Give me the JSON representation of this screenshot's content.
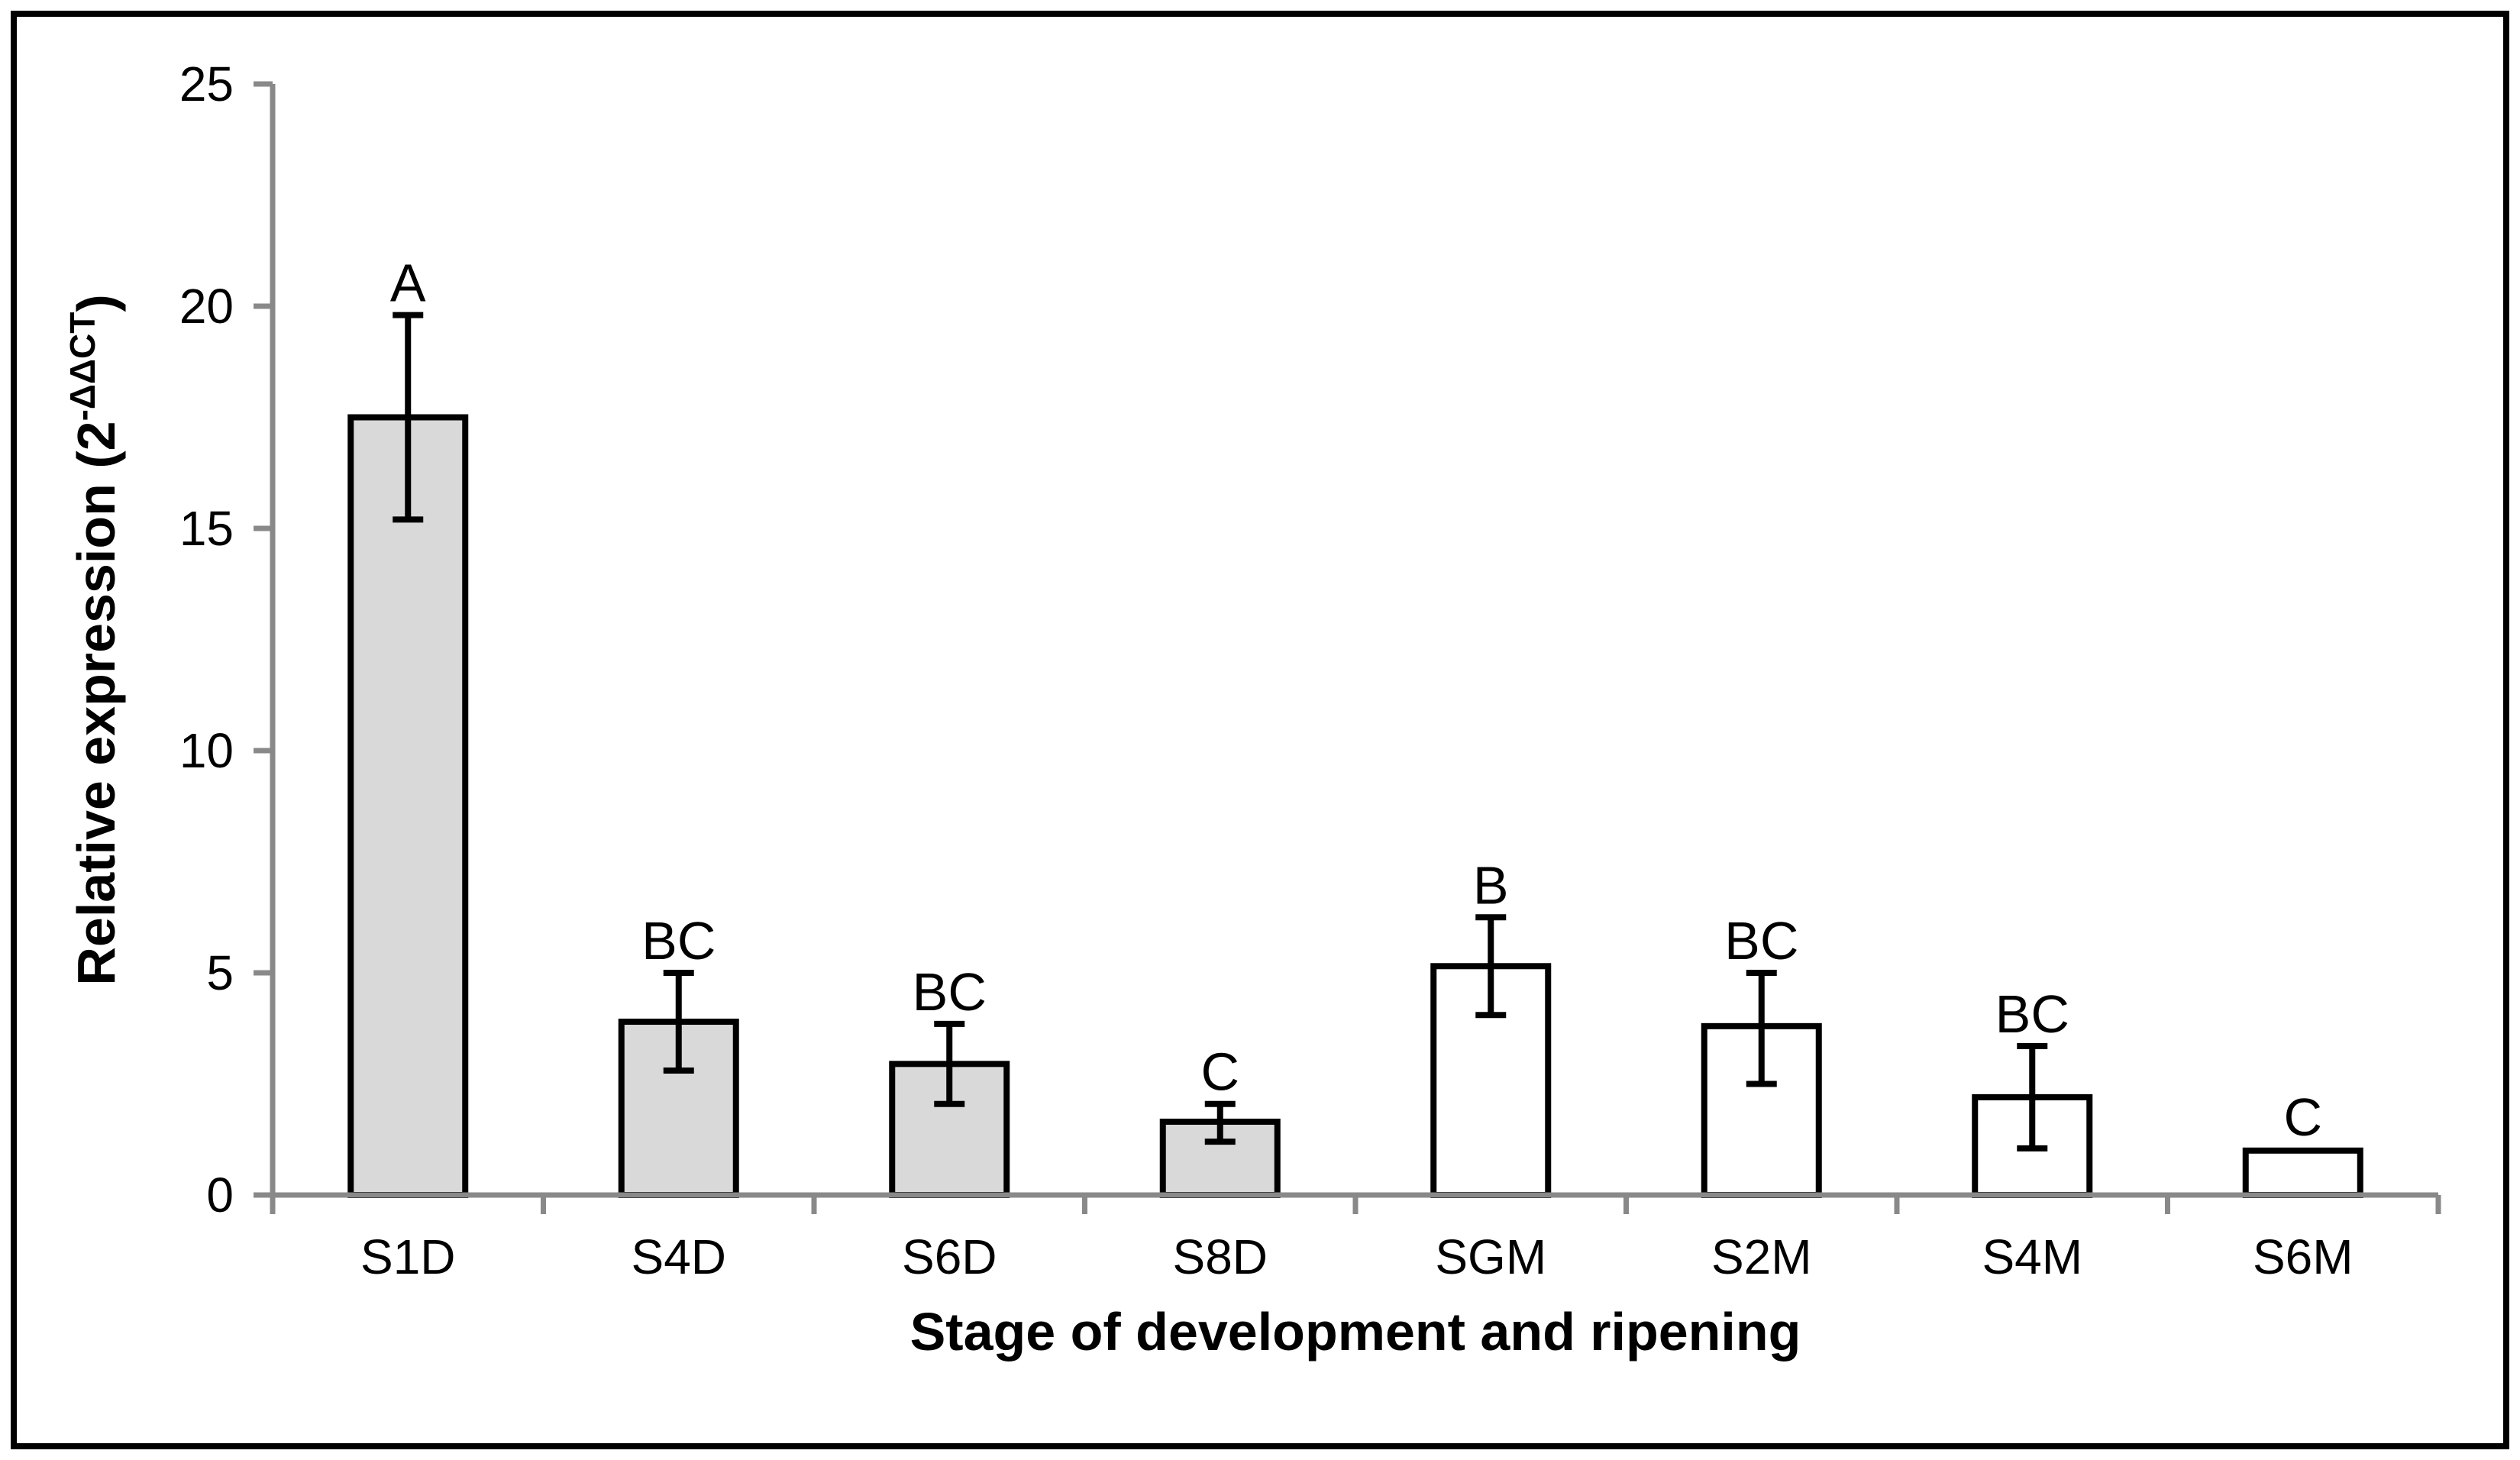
{
  "figure": {
    "background_color": "#ffffff",
    "border_color": "#000000",
    "border_width": 8
  },
  "chart_data": {
    "type": "bar",
    "title": "",
    "xlabel": "Stage of development and ripening",
    "ylabel": "Relative expression (2-ΔΔCT)",
    "ylabel_parts": {
      "main": "Relative expression (2",
      "superscript": "-ΔΔCT",
      "close": ")"
    },
    "categories": [
      "S1D",
      "S4D",
      "S6D",
      "S8D",
      "SGM",
      "S2M",
      "S4M",
      "S6M"
    ],
    "series": [
      {
        "name": "Relative expression",
        "values": [
          17.5,
          3.9,
          2.95,
          1.65,
          5.15,
          3.8,
          2.2,
          1.0
        ],
        "error_low": [
          15.2,
          2.8,
          2.05,
          1.2,
          4.05,
          2.5,
          1.05,
          null
        ],
        "error_high": [
          19.8,
          5.0,
          3.85,
          2.05,
          6.25,
          5.0,
          3.35,
          null
        ],
        "sig_letters": [
          "A",
          "BC",
          "BC",
          "C",
          "B",
          "BC",
          "BC",
          "C"
        ],
        "bar_fills": [
          "#d9d9d9",
          "#d9d9d9",
          "#d9d9d9",
          "#d9d9d9",
          "#ffffff",
          "#ffffff",
          "#ffffff",
          "#ffffff"
        ]
      }
    ],
    "ylim": [
      0,
      25
    ],
    "yticks": [
      0,
      5,
      10,
      15,
      20,
      25
    ],
    "grid": false,
    "legend": false,
    "colors": {
      "axis_line": "#898989",
      "bar_outline": "#000000",
      "error_bar": "#000000",
      "text": "#000000",
      "fill_developing": "#d9d9d9",
      "fill_mature": "#ffffff"
    }
  }
}
